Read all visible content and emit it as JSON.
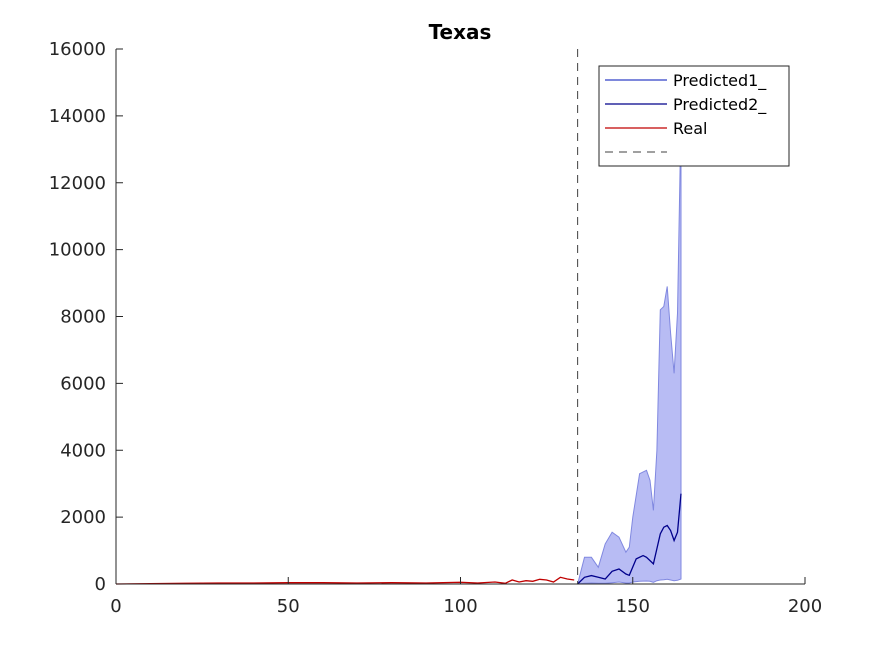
{
  "chart_data": {
    "type": "line",
    "title": "Texas",
    "xlabel": "",
    "ylabel": "",
    "xlim": [
      0,
      200
    ],
    "ylim": [
      0,
      16000
    ],
    "x_ticks": [
      0,
      50,
      100,
      150,
      200
    ],
    "y_ticks": [
      0,
      2000,
      4000,
      6000,
      8000,
      10000,
      12000,
      14000,
      16000
    ],
    "vertical_line_x": 134,
    "grid": false,
    "legend_position": "top-right",
    "colors": {
      "predicted1": "#3040c8",
      "predicted2": "#00008b",
      "real": "#c00000",
      "band_fill": "#b8bcf4",
      "band_edge": "#8088e0",
      "vline": "#404040",
      "axis": "#262626"
    },
    "series": [
      {
        "name": "Predicted1_",
        "x": [],
        "y": []
      },
      {
        "name": "Predicted2_",
        "x": [
          134,
          136,
          138,
          140,
          142,
          144,
          146,
          148,
          149,
          151,
          153,
          154,
          156,
          158,
          159,
          160,
          161,
          162,
          163,
          164
        ],
        "y": [
          0,
          200,
          250,
          200,
          150,
          380,
          450,
          300,
          260,
          750,
          850,
          800,
          600,
          1500,
          1700,
          1750,
          1600,
          1300,
          1550,
          2700
        ]
      },
      {
        "name": "Real",
        "x": [
          0,
          10,
          20,
          30,
          40,
          50,
          60,
          70,
          80,
          90,
          100,
          105,
          110,
          113,
          115,
          117,
          119,
          121,
          123,
          125,
          127,
          129,
          131,
          133
        ],
        "y": [
          0,
          10,
          20,
          30,
          30,
          40,
          40,
          30,
          40,
          30,
          50,
          30,
          60,
          20,
          120,
          60,
          100,
          80,
          140,
          120,
          60,
          200,
          150,
          120
        ]
      },
      {
        "name": "",
        "x": [],
        "y": []
      }
    ],
    "band": {
      "x": [
        134,
        136,
        138,
        140,
        142,
        144,
        146,
        148,
        149,
        150,
        152,
        154,
        155,
        156,
        157,
        158,
        159,
        160,
        161,
        162,
        163,
        164
      ],
      "upper": [
        0,
        800,
        800,
        500,
        1200,
        1550,
        1400,
        950,
        1100,
        2000,
        3300,
        3400,
        3100,
        2200,
        4000,
        8200,
        8300,
        8900,
        7500,
        6300,
        8100,
        14000
      ],
      "lower": [
        0,
        20,
        30,
        20,
        20,
        40,
        60,
        30,
        30,
        60,
        80,
        90,
        80,
        50,
        100,
        120,
        130,
        140,
        120,
        100,
        110,
        150
      ]
    }
  }
}
